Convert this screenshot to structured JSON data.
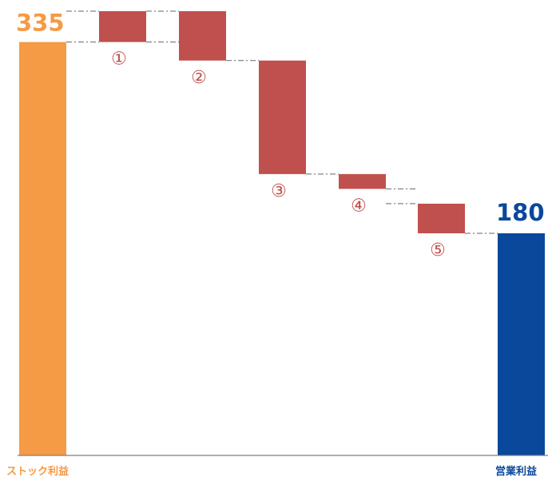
{
  "chart_data": {
    "type": "bar",
    "subtype": "waterfall",
    "title": "",
    "xlabel": "",
    "ylabel": "",
    "ylim": [
      0,
      360
    ],
    "grid": false,
    "legend": "none",
    "start": {
      "label": "ストック利益",
      "value": 335,
      "value_label": "335",
      "color": "#F59A45"
    },
    "end": {
      "label": "営業利益",
      "value": 180,
      "value_label": "180",
      "color": "#0A489C"
    },
    "steps": [
      {
        "label": "①",
        "from": 360,
        "to": 335
      },
      {
        "label": "②",
        "from": 360,
        "to": 320
      },
      {
        "label": "③",
        "from": 320,
        "to": 228
      },
      {
        "label": "④",
        "from": 228,
        "to": 216
      },
      {
        "label": "⑤",
        "from": 204,
        "to": 180
      }
    ],
    "step_color": "#C0504D",
    "label_color": "#C0504D",
    "connector_color": "#666666",
    "axis_color": "#7F7F7F"
  }
}
